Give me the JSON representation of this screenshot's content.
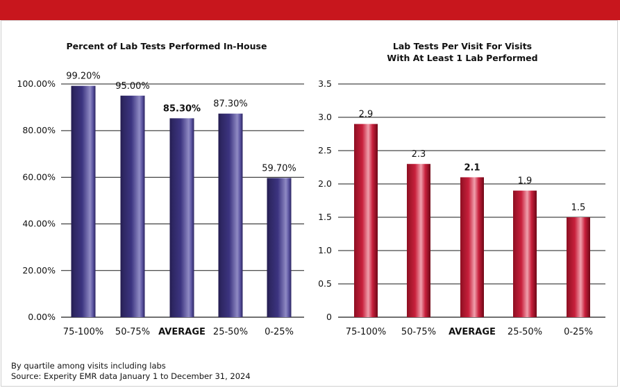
{
  "chart_data": [
    {
      "type": "bar",
      "title": "Percent of Lab Tests Performed In-House",
      "categories": [
        "75-100%",
        "50-75%",
        "AVERAGE",
        "25-50%",
        "0-25%"
      ],
      "values": [
        99.2,
        95.0,
        85.3,
        87.3,
        59.7
      ],
      "value_labels": [
        "99.20%",
        "95.00%",
        "85.30%",
        "87.30%",
        "59.70%"
      ],
      "yticks": [
        "0.00%",
        "20.00%",
        "40.00%",
        "60.00%",
        "80.00%",
        "100.00%"
      ],
      "ylim": [
        0,
        100
      ],
      "grid": true,
      "highlight_category": "AVERAGE",
      "bar_color": "#37306b"
    },
    {
      "type": "bar",
      "title": "Lab Tests Per Visit For Visits With At Least 1 Lab Performed",
      "title_lines": [
        "Lab Tests Per Visit For Visits",
        "With At Least 1 Lab Performed"
      ],
      "categories": [
        "75-100%",
        "50-75%",
        "AVERAGE",
        "25-50%",
        "0-25%"
      ],
      "values": [
        2.9,
        2.3,
        2.1,
        1.9,
        1.5
      ],
      "value_labels": [
        "2.9",
        "2.3",
        "2.1",
        "1.9",
        "1.5"
      ],
      "yticks": [
        "0",
        "0.5",
        "1.0",
        "1.5",
        "2.0",
        "2.5",
        "3.0",
        "3.5"
      ],
      "ylim": [
        0,
        3.5
      ],
      "grid": true,
      "highlight_category": "AVERAGE",
      "bar_color": "#b3142c"
    }
  ],
  "footnotes": {
    "line1": "By quartile among visits including labs",
    "line2": "Source: Experity EMR data January 1 to December 31, 2024"
  },
  "colors": {
    "topbar": "#c8161d"
  }
}
